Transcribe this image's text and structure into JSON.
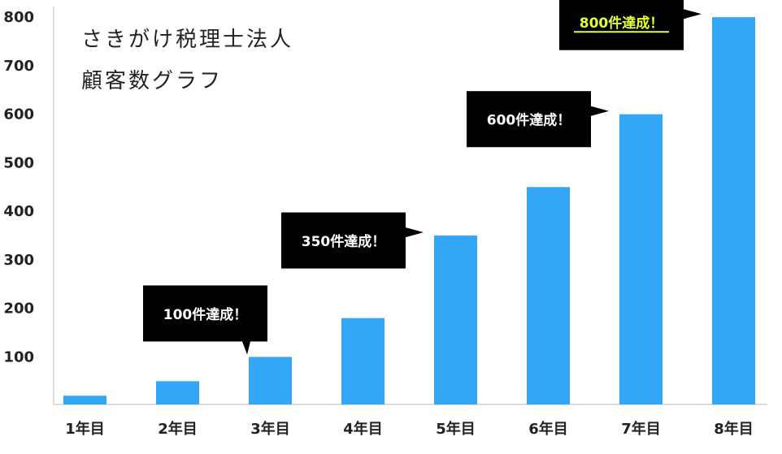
{
  "chart_data": {
    "type": "bar",
    "title_lines": [
      "さきがけ税理士法人",
      "顧客数グラフ"
    ],
    "categories": [
      "1年目",
      "2年目",
      "3年目",
      "4年目",
      "5年目",
      "6年目",
      "7年目",
      "8年目"
    ],
    "values": [
      18,
      48,
      98,
      178,
      348,
      448,
      598,
      798
    ],
    "ylim": [
      0,
      800
    ],
    "yticks": [
      100,
      200,
      300,
      400,
      500,
      600,
      700,
      800
    ],
    "grid": false,
    "bar_color": "#33A6F5",
    "annotations": [
      {
        "text": "100件達成！",
        "category": "3年目",
        "pointer": "down",
        "text_color": "#ffffff",
        "underline": false
      },
      {
        "text": "350件達成！",
        "category": "5年目",
        "pointer": "right",
        "text_color": "#ffffff",
        "underline": false
      },
      {
        "text": "600件達成！",
        "category": "7年目",
        "pointer": "right",
        "text_color": "#ffffff",
        "underline": false
      },
      {
        "text": "800件達成！",
        "category": "8年目",
        "pointer": "right",
        "text_color": "#E6FF3B",
        "underline": true
      }
    ],
    "annotation_bg": "#000000"
  }
}
